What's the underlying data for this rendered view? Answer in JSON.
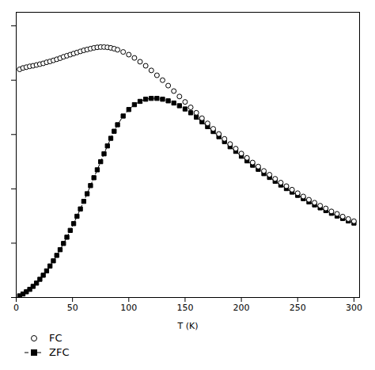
{
  "chart_data": {
    "type": "line",
    "xlabel": "T (K)",
    "xlim": [
      0,
      305
    ],
    "ylim": [
      0,
      1.05
    ],
    "xticks": [
      0,
      50,
      100,
      150,
      200,
      250,
      300
    ],
    "yticks": [
      0,
      0.2,
      0.4,
      0.6,
      0.8,
      1.0
    ],
    "tick_labels": "x",
    "legend": "bottom",
    "x": [
      3,
      6,
      9,
      12,
      15,
      18,
      21,
      24,
      27,
      30,
      33,
      36,
      39,
      42,
      45,
      48,
      51,
      54,
      57,
      60,
      63,
      66,
      69,
      72,
      75,
      78,
      81,
      84,
      87,
      90,
      95,
      100,
      105,
      110,
      115,
      120,
      125,
      130,
      135,
      140,
      145,
      150,
      155,
      160,
      165,
      170,
      175,
      180,
      185,
      190,
      195,
      200,
      205,
      210,
      215,
      220,
      225,
      230,
      235,
      240,
      245,
      250,
      255,
      260,
      265,
      270,
      275,
      280,
      285,
      290,
      295,
      300
    ],
    "series": [
      {
        "name": "FC",
        "color": "#000000",
        "marker": "open-circle",
        "line_style": "none",
        "values": [
          0.84,
          0.845,
          0.848,
          0.851,
          0.853,
          0.856,
          0.859,
          0.862,
          0.866,
          0.869,
          0.873,
          0.877,
          0.881,
          0.886,
          0.89,
          0.894,
          0.898,
          0.902,
          0.906,
          0.91,
          0.913,
          0.916,
          0.919,
          0.921,
          0.922,
          0.922,
          0.921,
          0.919,
          0.916,
          0.912,
          0.904,
          0.894,
          0.882,
          0.868,
          0.853,
          0.836,
          0.818,
          0.8,
          0.78,
          0.76,
          0.74,
          0.72,
          0.7,
          0.68,
          0.66,
          0.641,
          0.621,
          0.602,
          0.584,
          0.565,
          0.548,
          0.53,
          0.514,
          0.497,
          0.482,
          0.466,
          0.452,
          0.437,
          0.423,
          0.41,
          0.397,
          0.384,
          0.372,
          0.36,
          0.349,
          0.338,
          0.328,
          0.317,
          0.308,
          0.298,
          0.289,
          0.281
        ]
      },
      {
        "name": "ZFC",
        "color": "#000000",
        "marker": "square",
        "line_style": "dashed",
        "values": [
          0.006,
          0.013,
          0.021,
          0.03,
          0.041,
          0.053,
          0.067,
          0.082,
          0.098,
          0.116,
          0.135,
          0.155,
          0.176,
          0.199,
          0.222,
          0.247,
          0.272,
          0.299,
          0.326,
          0.354,
          0.382,
          0.412,
          0.441,
          0.47,
          0.5,
          0.529,
          0.558,
          0.586,
          0.612,
          0.636,
          0.668,
          0.692,
          0.71,
          0.722,
          0.73,
          0.733,
          0.733,
          0.73,
          0.724,
          0.716,
          0.706,
          0.694,
          0.68,
          0.664,
          0.647,
          0.629,
          0.611,
          0.592,
          0.574,
          0.555,
          0.538,
          0.52,
          0.503,
          0.487,
          0.472,
          0.456,
          0.442,
          0.428,
          0.414,
          0.401,
          0.388,
          0.376,
          0.364,
          0.352,
          0.341,
          0.33,
          0.32,
          0.31,
          0.3,
          0.291,
          0.282,
          0.274
        ]
      }
    ]
  }
}
